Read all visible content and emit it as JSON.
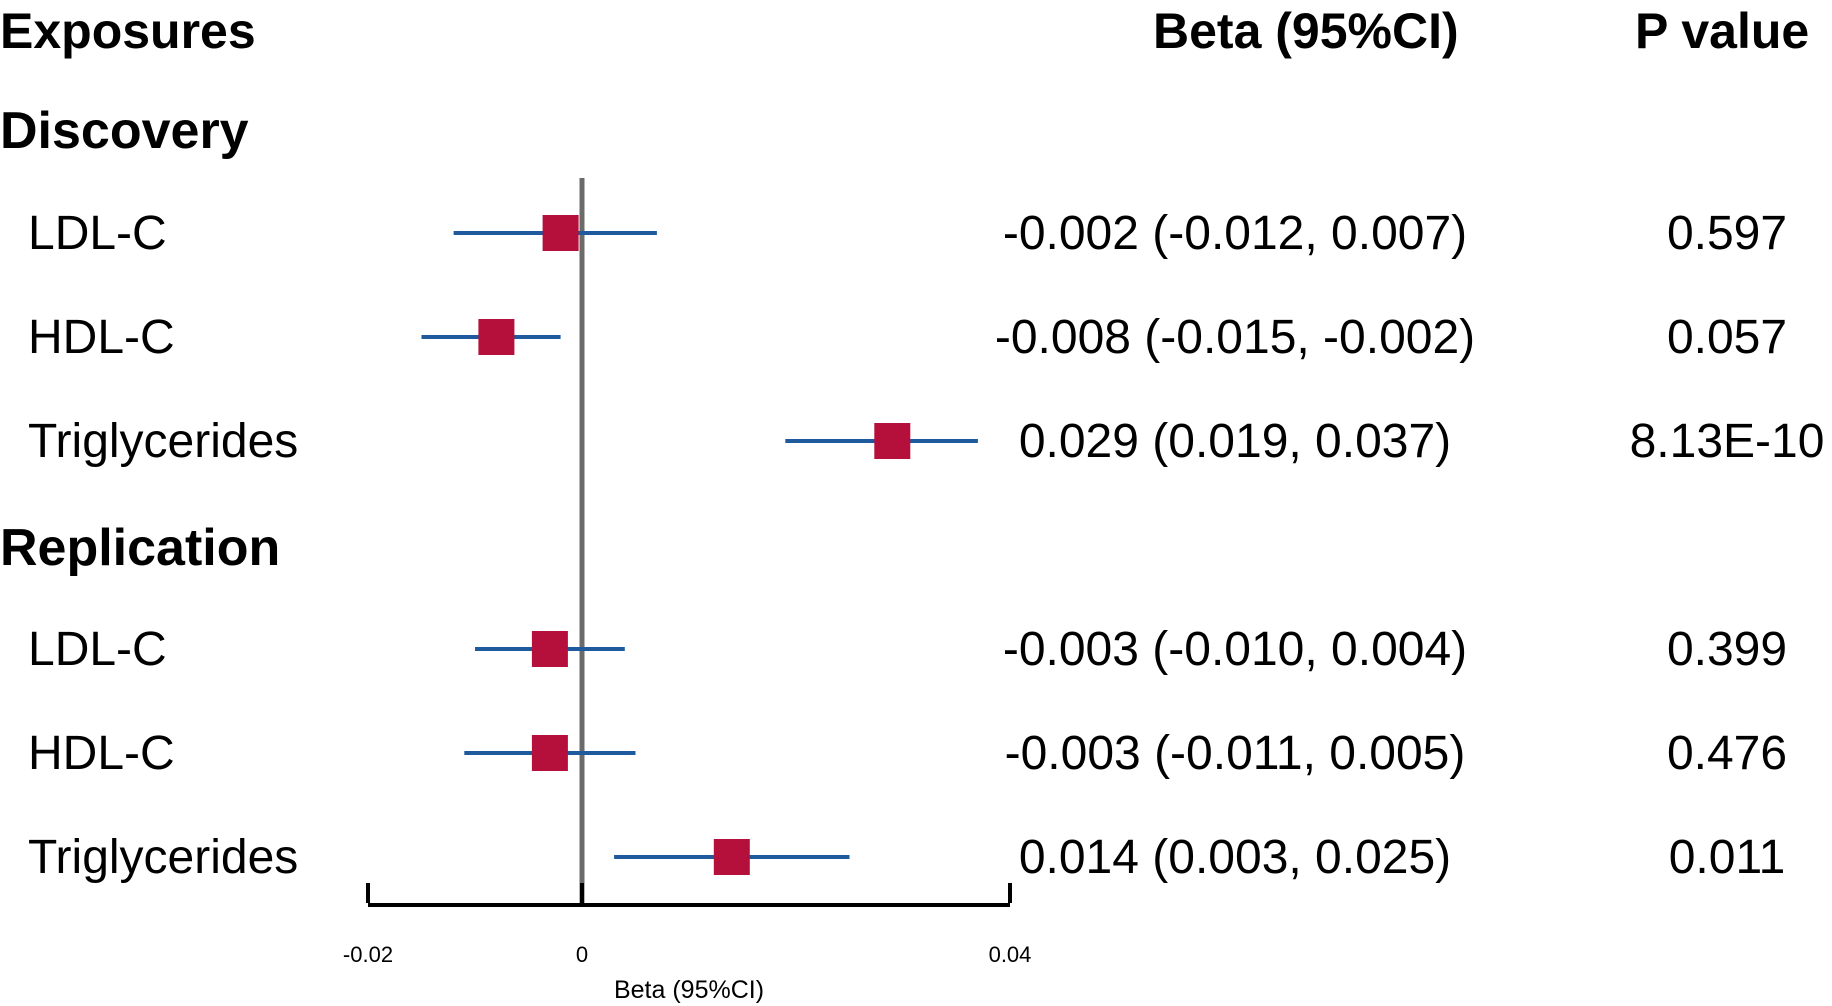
{
  "header": {
    "exposures": "Exposures",
    "beta": "Beta (95%CI)",
    "pvalue": "P value"
  },
  "sections": [
    {
      "name": "Discovery",
      "rows": [
        {
          "label": "LDL-C",
          "beta_text": "-0.002 (-0.012, 0.007)",
          "p_text": "0.597"
        },
        {
          "label": "HDL-C",
          "beta_text": "-0.008 (-0.015, -0.002)",
          "p_text": "0.057"
        },
        {
          "label": "Triglycerides",
          "beta_text": "0.029 (0.019, 0.037)",
          "p_text": "8.13E-10"
        }
      ]
    },
    {
      "name": "Replication",
      "rows": [
        {
          "label": "LDL-C",
          "beta_text": "-0.003 (-0.010, 0.004)",
          "p_text": "0.399"
        },
        {
          "label": "HDL-C",
          "beta_text": "-0.003 (-0.011, 0.005)",
          "p_text": "0.476"
        },
        {
          "label": "Triglycerides",
          "beta_text": "0.014 (0.003, 0.025)",
          "p_text": "0.011"
        }
      ]
    }
  ],
  "chart_data": {
    "type": "forest",
    "title": "",
    "xlabel": "Beta (95%CI)",
    "ylabel": "Exposures",
    "xlim": [
      -0.02,
      0.04
    ],
    "xticks": [
      -0.02,
      0,
      0.04
    ],
    "xtick_labels": [
      "-0.02",
      "0",
      "0.04"
    ],
    "reference_line": 0,
    "series": [
      {
        "name": "Discovery",
        "points": [
          {
            "label": "LDL-C",
            "estimate": -0.002,
            "lower": -0.012,
            "upper": 0.007
          },
          {
            "label": "HDL-C",
            "estimate": -0.008,
            "lower": -0.015,
            "upper": -0.002
          },
          {
            "label": "Triglycerides",
            "estimate": 0.029,
            "lower": 0.019,
            "upper": 0.037
          }
        ]
      },
      {
        "name": "Replication",
        "points": [
          {
            "label": "LDL-C",
            "estimate": -0.003,
            "lower": -0.01,
            "upper": 0.004
          },
          {
            "label": "HDL-C",
            "estimate": -0.003,
            "lower": -0.011,
            "upper": 0.005
          },
          {
            "label": "Triglycerides",
            "estimate": 0.014,
            "lower": 0.003,
            "upper": 0.025
          }
        ]
      }
    ],
    "colors": {
      "ci_line": "#1f5a9e",
      "marker": "#b5103c",
      "reference": "#6b6b6b",
      "axis": "#000000"
    }
  }
}
